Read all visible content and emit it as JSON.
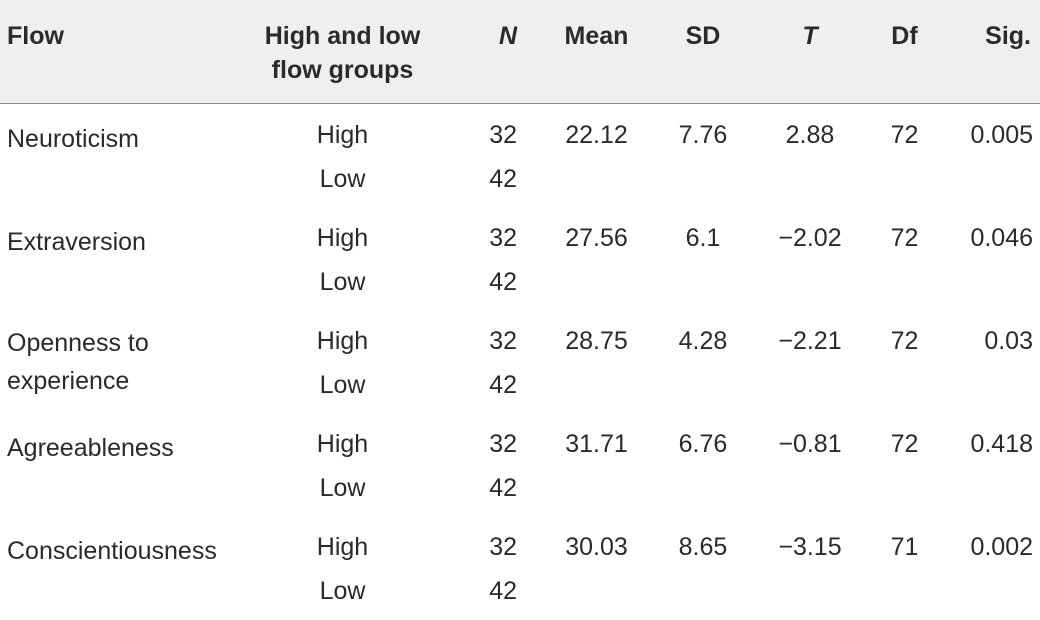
{
  "header": {
    "flow": "Flow",
    "groups": "High and low flow groups",
    "n": "N",
    "mean": "Mean",
    "sd": "SD",
    "t": "T",
    "df": "Df",
    "sig": "Sig."
  },
  "rows": [
    {
      "trait": "Neuroticism",
      "high": {
        "group": "High",
        "n": "32"
      },
      "low": {
        "group": "Low",
        "n": "42"
      },
      "mean": "22.12",
      "sd": "7.76",
      "t": "2.88",
      "df": "72",
      "sig": "0.005"
    },
    {
      "trait": "Extraversion",
      "high": {
        "group": "High",
        "n": "32"
      },
      "low": {
        "group": "Low",
        "n": "42"
      },
      "mean": "27.56",
      "sd": "6.1",
      "t": "−2.02",
      "df": "72",
      "sig": "0.046"
    },
    {
      "trait": "Openness to experience",
      "high": {
        "group": "High",
        "n": "32"
      },
      "low": {
        "group": "Low",
        "n": "42"
      },
      "mean": "28.75",
      "sd": "4.28",
      "t": "−2.21",
      "df": "72",
      "sig": "0.03"
    },
    {
      "trait": "Agreeableness",
      "high": {
        "group": "High",
        "n": "32"
      },
      "low": {
        "group": "Low",
        "n": "42"
      },
      "mean": "31.71",
      "sd": "6.76",
      "t": "−0.81",
      "df": "72",
      "sig": "0.418"
    },
    {
      "trait": "Conscientiousness",
      "high": {
        "group": "High",
        "n": "32"
      },
      "low": {
        "group": "Low",
        "n": "42"
      },
      "mean": "30.03",
      "sd": "8.65",
      "t": "−3.15",
      "df": "71",
      "sig": "0.002"
    }
  ]
}
